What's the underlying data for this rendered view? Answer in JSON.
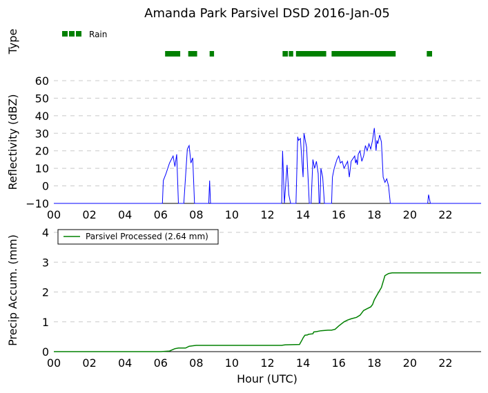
{
  "chart_data": [
    {
      "type": "scatter",
      "ylabel": "Type",
      "x_unit": "hour (UTC)",
      "legend": {
        "label": "Rain",
        "color": "#008000",
        "position": "top-left"
      },
      "rain_intervals": [
        [
          6.25,
          7.1
        ],
        [
          7.55,
          8.05
        ],
        [
          8.75,
          9.0
        ],
        [
          12.85,
          13.15
        ],
        [
          13.2,
          13.45
        ],
        [
          13.6,
          15.3
        ],
        [
          15.6,
          19.2
        ],
        [
          20.95,
          21.25
        ]
      ]
    },
    {
      "type": "line",
      "ylabel": "Reflectivity (dBZ)",
      "xlim": [
        0,
        24
      ],
      "ylim": [
        -10,
        60
      ],
      "yticks": [
        -10,
        0,
        10,
        20,
        30,
        40,
        50,
        60
      ],
      "grid": true,
      "color": "#0000ff",
      "baseline": -10,
      "x": [
        0,
        6.1,
        6.15,
        6.3,
        6.5,
        6.7,
        6.8,
        6.9,
        7.0,
        7.1,
        7.3,
        7.5,
        7.6,
        7.7,
        7.8,
        7.9,
        8.7,
        8.75,
        8.8,
        12.8,
        12.85,
        12.95,
        13.1,
        13.2,
        13.3,
        13.4,
        13.6,
        13.7,
        13.75,
        13.85,
        14.0,
        14.05,
        14.2,
        14.35,
        14.45,
        14.55,
        14.65,
        14.75,
        14.85,
        14.9,
        14.95,
        15.0,
        15.1,
        15.2,
        15.25,
        15.3,
        15.6,
        15.65,
        15.75,
        15.9,
        16.0,
        16.1,
        16.2,
        16.3,
        16.4,
        16.5,
        16.6,
        16.7,
        16.9,
        16.95,
        17.0,
        17.05,
        17.1,
        17.2,
        17.3,
        17.4,
        17.5,
        17.6,
        17.7,
        17.8,
        17.9,
        18.0,
        18.1,
        18.15,
        18.2,
        18.3,
        18.4,
        18.5,
        18.6,
        18.7,
        18.8,
        18.9,
        19.0,
        19.1,
        19.2,
        19.3,
        21.0,
        21.05,
        21.15,
        21.2,
        24.0
      ],
      "y": [
        -10,
        -10,
        3,
        7,
        13,
        17,
        11,
        18,
        -10,
        -10,
        -10,
        21,
        23,
        13,
        16,
        -10,
        -10,
        3,
        -10,
        -10,
        20,
        -10,
        12,
        -5,
        -10,
        -10,
        -10,
        28,
        26,
        27,
        5,
        30,
        22,
        -10,
        -10,
        15,
        10,
        14,
        7,
        -10,
        -10,
        10,
        5,
        -10,
        -10,
        -10,
        -10,
        5,
        10,
        15,
        17,
        13,
        14,
        10,
        12,
        14,
        5,
        14,
        17,
        13,
        15,
        12,
        18,
        20,
        14,
        17,
        23,
        20,
        24,
        21,
        26,
        33,
        20,
        26,
        24,
        29,
        25,
        5,
        2,
        4,
        0,
        -10,
        -10,
        -10,
        -10,
        -10,
        -10,
        -5,
        -10,
        -10,
        -10
      ]
    },
    {
      "type": "line",
      "xlabel": "Hour (UTC)",
      "ylabel": "Precip Accum. (mm)",
      "xlim": [
        0,
        24
      ],
      "ylim": [
        0,
        4
      ],
      "yticks": [
        0,
        1,
        2,
        3,
        4
      ],
      "xticks": [
        "00",
        "02",
        "04",
        "06",
        "08",
        "10",
        "12",
        "14",
        "16",
        "18",
        "20",
        "22"
      ],
      "xtick_values": [
        0,
        2,
        4,
        6,
        8,
        10,
        12,
        14,
        16,
        18,
        20,
        22
      ],
      "grid": true,
      "color": "#008000",
      "series": [
        {
          "name": "Parsivel Processed (2.64 mm)",
          "x": [
            0,
            6.0,
            6.5,
            6.8,
            7.0,
            7.4,
            7.6,
            8.0,
            12.8,
            13.0,
            13.8,
            13.95,
            14.0,
            14.1,
            14.25,
            14.3,
            14.55,
            14.6,
            14.75,
            15.0,
            15.4,
            15.6,
            15.8,
            16.0,
            16.3,
            16.5,
            16.7,
            17.0,
            17.2,
            17.4,
            17.6,
            17.8,
            17.9,
            18.0,
            18.2,
            18.4,
            18.6,
            18.8,
            19.0,
            19.2,
            24.0
          ],
          "y": [
            0,
            0,
            0.02,
            0.1,
            0.12,
            0.12,
            0.18,
            0.21,
            0.21,
            0.23,
            0.24,
            0.4,
            0.46,
            0.55,
            0.56,
            0.58,
            0.6,
            0.66,
            0.67,
            0.7,
            0.72,
            0.72,
            0.75,
            0.86,
            1.0,
            1.06,
            1.1,
            1.15,
            1.22,
            1.38,
            1.44,
            1.5,
            1.58,
            1.74,
            1.95,
            2.15,
            2.55,
            2.62,
            2.64,
            2.64,
            2.64
          ]
        }
      ],
      "legend_position": "upper-left"
    }
  ],
  "figure": {
    "title": "Amanda Park Parsivel DSD 2016-Jan-05"
  }
}
